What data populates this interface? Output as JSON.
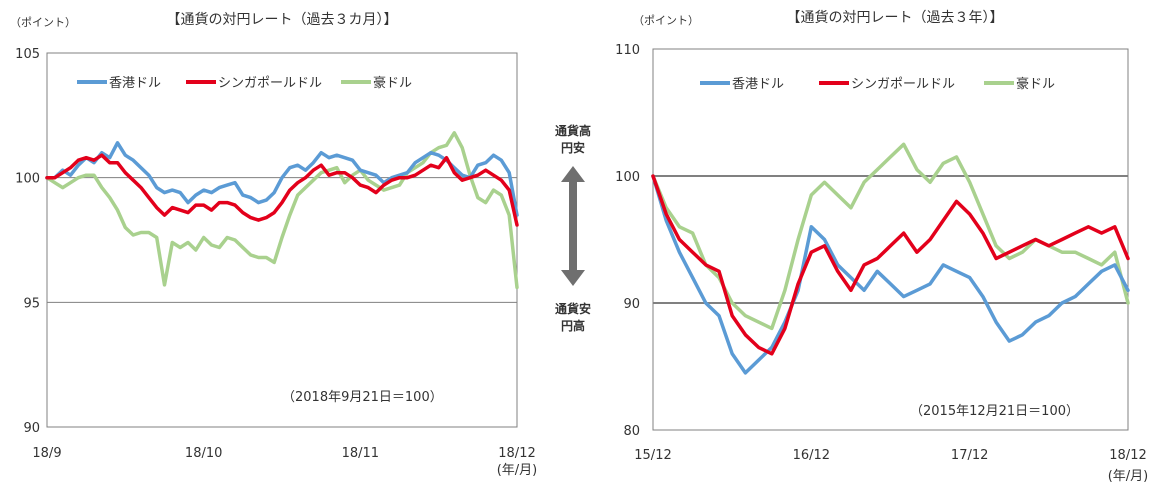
{
  "colors": {
    "hk": "#5b9bd5",
    "sg": "#e3001b",
    "au": "#a9d18e",
    "grid": "#808080",
    "frame": "#808080",
    "arrow": "#6f6f6f"
  },
  "arrow": {
    "top_line1": "通貨高",
    "top_line2": "円安",
    "bottom_line1": "通貨安",
    "bottom_line2": "円高"
  },
  "chart_data": [
    {
      "type": "line",
      "title": "【通貨の対円レート（過去３カ月）】",
      "unit_label": "（ポイント）",
      "x_unit": "(年/月)",
      "note": "（2018年9月21日＝100）",
      "ylim": [
        90,
        105
      ],
      "yticks": [
        "90",
        "95",
        "100",
        "105"
      ],
      "gridlines": [
        95,
        100
      ],
      "xticks": [
        "18/9",
        "18/10",
        "18/11",
        "18/12"
      ],
      "legend": "top-left",
      "x_domain": [
        0,
        60
      ],
      "series": [
        {
          "name": "香港ドル",
          "color_key": "hk",
          "values": [
            100,
            100,
            100.3,
            100.1,
            100.5,
            100.8,
            100.6,
            101.0,
            100.8,
            101.4,
            100.9,
            100.7,
            100.4,
            100.1,
            99.6,
            99.4,
            99.5,
            99.4,
            99.0,
            99.3,
            99.5,
            99.4,
            99.6,
            99.7,
            99.8,
            99.3,
            99.2,
            99.0,
            99.1,
            99.4,
            100.0,
            100.4,
            100.5,
            100.3,
            100.6,
            101.0,
            100.8,
            100.9,
            100.8,
            100.7,
            100.3,
            100.2,
            100.1,
            99.8,
            100.0,
            100.1,
            100.2,
            100.6,
            100.8,
            101.0,
            100.9,
            100.7,
            100.4,
            100.1,
            100.0,
            100.5,
            100.6,
            100.9,
            100.7,
            100.2,
            98.5
          ]
        },
        {
          "name": "シンガポールドル",
          "color_key": "sg",
          "values": [
            100,
            100,
            100.2,
            100.4,
            100.7,
            100.8,
            100.7,
            100.9,
            100.6,
            100.6,
            100.2,
            99.9,
            99.6,
            99.2,
            98.8,
            98.5,
            98.8,
            98.7,
            98.6,
            98.9,
            98.9,
            98.7,
            99.0,
            99.0,
            98.9,
            98.6,
            98.4,
            98.3,
            98.4,
            98.6,
            99.0,
            99.5,
            99.8,
            100.0,
            100.3,
            100.5,
            100.1,
            100.2,
            100.2,
            100.0,
            99.7,
            99.6,
            99.4,
            99.7,
            99.9,
            100.0,
            100.0,
            100.1,
            100.3,
            100.5,
            100.4,
            100.8,
            100.2,
            99.9,
            100.0,
            100.1,
            100.3,
            100.1,
            99.9,
            99.5,
            98.1
          ]
        },
        {
          "name": "豪ドル",
          "color_key": "au",
          "values": [
            100,
            99.8,
            99.6,
            99.8,
            100.0,
            100.1,
            100.1,
            99.6,
            99.2,
            98.7,
            98.0,
            97.7,
            97.8,
            97.8,
            97.6,
            95.7,
            97.4,
            97.2,
            97.4,
            97.1,
            97.6,
            97.3,
            97.2,
            97.6,
            97.5,
            97.2,
            96.9,
            96.8,
            96.8,
            96.6,
            97.6,
            98.5,
            99.3,
            99.6,
            99.9,
            100.2,
            100.3,
            100.4,
            99.8,
            100.1,
            100.3,
            99.9,
            99.7,
            99.5,
            99.6,
            99.7,
            100.2,
            100.4,
            100.6,
            101.0,
            101.2,
            101.3,
            101.8,
            101.2,
            100.1,
            99.2,
            99.0,
            99.5,
            99.3,
            98.5,
            95.6
          ]
        }
      ]
    },
    {
      "type": "line",
      "title": "【通貨の対円レート（過去３年）】",
      "unit_label": "（ポイント）",
      "x_unit": "(年/月)",
      "note": "（2015年12月21日＝100）",
      "ylim": [
        80,
        110
      ],
      "yticks": [
        "80",
        "90",
        "100",
        "110"
      ],
      "gridlines": [
        90,
        100
      ],
      "xticks": [
        "15/12",
        "16/12",
        "17/12",
        "18/12"
      ],
      "legend": "top-left",
      "x_domain": [
        0,
        36
      ],
      "series": [
        {
          "name": "香港ドル",
          "color_key": "hk",
          "values": [
            100,
            96.5,
            94.0,
            92.0,
            90.0,
            89.0,
            86.0,
            84.5,
            85.5,
            86.5,
            88.5,
            91.0,
            96.0,
            95.0,
            93.0,
            92.0,
            91.0,
            92.5,
            91.5,
            90.5,
            91.0,
            91.5,
            93.0,
            92.5,
            92.0,
            90.5,
            88.5,
            87.0,
            87.5,
            88.5,
            89.0,
            90.0,
            90.5,
            91.5,
            92.5,
            93.0,
            91.0
          ]
        },
        {
          "name": "シンガポールドル",
          "color_key": "sg",
          "values": [
            100,
            97.0,
            95.0,
            94.0,
            93.0,
            92.5,
            89.0,
            87.5,
            86.5,
            86.0,
            88.0,
            91.5,
            94.0,
            94.5,
            92.5,
            91.0,
            93.0,
            93.5,
            94.5,
            95.5,
            94.0,
            95.0,
            96.5,
            98.0,
            97.0,
            95.5,
            93.5,
            94.0,
            94.5,
            95.0,
            94.5,
            95.0,
            95.5,
            96.0,
            95.5,
            96.0,
            93.5
          ]
        },
        {
          "name": "豪ドル",
          "color_key": "au",
          "values": [
            100,
            97.5,
            96.0,
            95.5,
            93.0,
            92.0,
            90.0,
            89.0,
            88.5,
            88.0,
            91.0,
            95.0,
            98.5,
            99.5,
            98.5,
            97.5,
            99.5,
            100.5,
            101.5,
            102.5,
            100.5,
            99.5,
            101.0,
            101.5,
            99.5,
            97.0,
            94.5,
            93.5,
            94.0,
            95.0,
            94.5,
            94.0,
            94.0,
            93.5,
            93.0,
            94.0,
            90.0
          ]
        }
      ]
    }
  ]
}
